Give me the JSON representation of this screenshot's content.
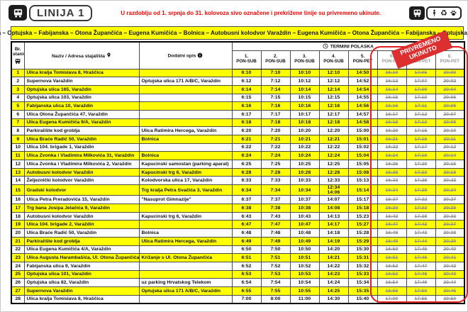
{
  "header": {
    "line_badge": "LINIJA 1",
    "notice": "U razdoblju od 1. srpnja do 31. kolovoza sivo označene i prekrižene linije su privremeno ukinute."
  },
  "icons": {
    "top_left": "bus-icon",
    "top_right": [
      "bus-icon",
      "person-icon",
      "recycle-icon",
      "paw-icon"
    ],
    "recycle_glyph": "♻",
    "station_column": "bus-icon",
    "name_column": "location-pin-icon",
    "desc_column": "info-icon",
    "departures": "clock-icon"
  },
  "route_banner": "Hraščica – Optujska – Fabijanska – Otona Župančića – Eugena Kumičića – Bolnica – Autobusni kolodvor Varaždin – Eugena Kumičića – Otona Župančića – Fabijanska – Optujska – Hraščica",
  "colors": {
    "stripe_yellow": "#ffff00",
    "alert_red": "#ff0000",
    "stamp_red": "#dd2f2f",
    "cancelled_gray": "#8f8f8f"
  },
  "table": {
    "station_col": {
      "line1": "Br.",
      "line2": "stanice"
    },
    "col_name": "Naziv / Adresa stajališta",
    "col_desc": "Dodatni opis",
    "departures_title": "TERMINI POLASKA",
    "stamp_label": "PRIVREMENO UKINUTO",
    "time_columns": [
      {
        "num": "1.",
        "days": "PON-SUB",
        "cancelled": false
      },
      {
        "num": "2.",
        "days": "PON-SUB",
        "cancelled": false
      },
      {
        "num": "3.",
        "days": "PON-SUB",
        "cancelled": false
      },
      {
        "num": "4.",
        "days": "PON-SUB",
        "cancelled": false
      },
      {
        "num": "5.",
        "days": "PON-PET",
        "cancelled": false
      },
      {
        "num": "6.",
        "days": "PON-PET",
        "cancelled": true
      },
      {
        "num": "7.",
        "days": "PON-PET",
        "cancelled": true
      },
      {
        "num": "8.",
        "days": "PON-PET",
        "cancelled": true
      }
    ],
    "rows": [
      {
        "num": 1,
        "name": "Ulica kralja Tomislava 8, Hraščica",
        "desc": "",
        "times": [
          "6:10",
          "7:10",
          "10:10",
          "12:10",
          "14:50",
          "16:10",
          "17:05",
          "20:00"
        ]
      },
      {
        "num": 2,
        "name": "Supernova Varaždin",
        "desc": "Optujska ulica 171 A/B/C, Varaždin",
        "times": [
          "6:12",
          "7:12",
          "10:12",
          "12:12",
          "14:52",
          "16:12",
          "17:07",
          "20:02"
        ]
      },
      {
        "num": 3,
        "name": "Optujska ulica 165, Varaždin",
        "desc": "",
        "times": [
          "6:14",
          "7:14",
          "10:14",
          "12:14",
          "14:54",
          "16:14",
          "17:09",
          "20:04"
        ]
      },
      {
        "num": 4,
        "name": "Optujska ulica 103, Varaždin",
        "desc": "",
        "times": [
          "6:15",
          "7:15",
          "10:15",
          "12:15",
          "14:55",
          "16:15",
          "17:10",
          "20:05"
        ]
      },
      {
        "num": 5,
        "name": "Fabijanska ulica 10, Varaždin",
        "desc": "",
        "times": [
          "6:16",
          "7:16",
          "10:16",
          "12:16",
          "14:56",
          "16:16",
          "17:11",
          "20:06"
        ]
      },
      {
        "num": 6,
        "name": "Ulica Otona Župančića 47, Varaždin",
        "desc": "",
        "times": [
          "6:17",
          "7:17",
          "10:17",
          "12:17",
          "14:57",
          "16:17",
          "17:12",
          "20:07"
        ]
      },
      {
        "num": 7,
        "name": "Ulica Eugena Kumičića 9/A, Varaždin",
        "desc": "",
        "times": [
          "6:18",
          "7:18",
          "10:18",
          "12:18",
          "14:58",
          "16:18",
          "17:13",
          "20:08"
        ]
      },
      {
        "num": 8,
        "name": "Parkiralište kod groblja",
        "desc": "Ulica Ratimira Hercega, Varaždin",
        "times": [
          "6:20",
          "7:20",
          "10:20",
          "12:20",
          "15:00",
          "16:20",
          "17:15",
          "20:10"
        ]
      },
      {
        "num": 9,
        "name": "Ulica Braće Radić 50, Varaždin",
        "desc": "Bolnica",
        "times": [
          "6:21",
          "7:21",
          "10:21",
          "12:21",
          "15:01",
          "16:21",
          "17:16",
          "20:11"
        ]
      },
      {
        "num": 10,
        "name": "Ulica 104. brigade 1, Varaždin",
        "desc": "",
        "times": [
          "6:22",
          "7:22",
          "10:22",
          "12:22",
          "15:02",
          "16:22",
          "17:17",
          "20:12"
        ]
      },
      {
        "num": 11,
        "name": "Ulica Zvonka i Vladimira Milkovića 31, Varaždin",
        "desc": "Bolnica",
        "times": [
          "6:24",
          "7:24",
          "10:24",
          "12:24",
          "15:04",
          "16:24",
          "17:19",
          "20:14"
        ]
      },
      {
        "num": 12,
        "name": "Ulica Zvonka i Vladimira Milkovića 2, Varaždin",
        "desc": "Kapucinski samostan (parking aparat)",
        "times": [
          "6:25",
          "7:25",
          "10:25",
          "12:25",
          "15:05",
          "16:25",
          "17:20",
          "20:15"
        ]
      },
      {
        "num": 13,
        "name": "Autobusni kolodvor Varaždin",
        "desc": "Kapucinski trg 6, Varaždin",
        "times": [
          "6:28",
          "7:28",
          "10:28",
          "12:28",
          "15:08",
          "16:28",
          "17:23",
          "20:18"
        ]
      },
      {
        "num": 14,
        "name": "Željeznički kolodvor Varaždin",
        "desc": "Kolodvorska ulica 17, Varaždin",
        "times": [
          "6:33",
          "7:33",
          "10:33",
          "12:33",
          "15:13",
          "16:33",
          "17:28",
          "20:23"
        ]
      },
      {
        "num": 15,
        "name": "Gradski kolodvor",
        "desc": "Trg kralja Petra Svačića 3, Varaždin",
        "times": [
          "6:34",
          "7:34",
          "10:34",
          "12:34\n14:06",
          "15:14",
          "16:34",
          "17:29",
          "20:24"
        ]
      },
      {
        "num": 16,
        "name": "Ulica Petra Preradovića 15, Varaždin",
        "desc": "\"Nasuprot Gimnazije\"",
        "times": [
          "6:37",
          "7:37",
          "10:37",
          "14:07",
          "15:17",
          "16:37",
          "17:32",
          "20:27"
        ]
      },
      {
        "num": 17,
        "name": "Trg bana Josipa Jelačića 9, Varaždin",
        "desc": "",
        "times": [
          "6:38",
          "7:38",
          "10:38",
          "14:08",
          "15:18",
          "16:38",
          "17:33",
          "20:28"
        ]
      },
      {
        "num": 18,
        "name": "Autobusni kolodvor Varaždin",
        "desc": "Kapucinski trg 6, Varaždin",
        "times": [
          "6:43",
          "7:43",
          "10:43",
          "14:13",
          "15:23",
          "16:43",
          "17:38",
          "20:33"
        ]
      },
      {
        "num": 19,
        "name": "Ulica 104. brigade 2, Varaždin",
        "desc": "",
        "times": [
          "6:47",
          "7:47",
          "10:47",
          "14:17",
          "15:27",
          "16:47",
          "17:42",
          "20:37"
        ]
      },
      {
        "num": 20,
        "name": "Ulica Braće Radić 50, Varaždin",
        "desc": "Bolnica",
        "times": [
          "6:48",
          "7:48",
          "10:48",
          "14:18",
          "15:28",
          "16:48",
          "17:43",
          "20:38"
        ]
      },
      {
        "num": 21,
        "name": "Parkiralište kod groblja",
        "desc": "Ulica Ratimira Hercega, Varaždin",
        "times": [
          "6:49",
          "7:49",
          "10:49",
          "14:19",
          "15:29",
          "16:49",
          "17:44",
          "20:39"
        ]
      },
      {
        "num": 22,
        "name": "Ulica Eugena Kumičića 4/A, Varaždin",
        "desc": "",
        "times": [
          "6:50",
          "7:50",
          "10:50",
          "14:20",
          "15:30",
          "16:50",
          "17:45",
          "20:40"
        ]
      },
      {
        "num": 23,
        "name": "Ulica Augusta Harambašića, Ul. Otona Župančića",
        "desc": "Križanje s Ul. Otona Župančića",
        "times": [
          "6:51",
          "7:51",
          "10:51",
          "14:21",
          "15:31",
          "16:51",
          "17:46",
          "20:41"
        ]
      },
      {
        "num": 24,
        "name": "Fabijanska ulica 9, Varaždin",
        "desc": "",
        "times": [
          "6:52",
          "7:52",
          "10:52",
          "14:22",
          "15:32",
          "16:52",
          "17:47",
          "20:42"
        ]
      },
      {
        "num": 25,
        "name": "Optujska ulica 101, Varaždin",
        "desc": "",
        "times": [
          "6:53",
          "7:53",
          "10:53",
          "14:23",
          "15:33",
          "16:53",
          "17:48",
          "20:43"
        ]
      },
      {
        "num": 26,
        "name": "Optujska ulica 82, Varaždin",
        "desc": "uz parking Hrvatskog Telekom",
        "times": [
          "6:54",
          "7:54",
          "10:54",
          "14:24",
          "15:34",
          "16:54",
          "17:49",
          "20:44"
        ]
      },
      {
        "num": 27,
        "name": "Supernova Varaždin",
        "desc": "Optujska ulica 171 A/B/C, Varaždin",
        "times": [
          "6:55",
          "7:55",
          "10:55",
          "14:25",
          "15:35",
          "16:55",
          "17:50",
          "20:45"
        ]
      },
      {
        "num": 28,
        "name": "Ulica kralja Tomislava 8, Hraščica",
        "desc": "",
        "times": [
          "7:00",
          "8:00",
          "11:00",
          "14:30",
          "15:40",
          "17:00",
          "17:55",
          "20:50"
        ]
      }
    ]
  }
}
